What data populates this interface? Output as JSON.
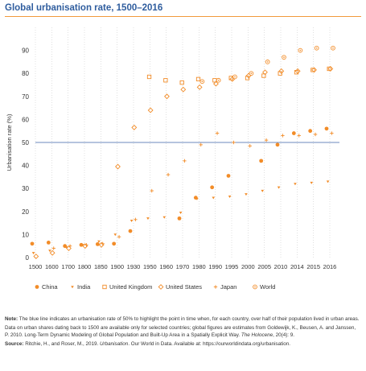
{
  "title": "Global urbanisation rate, 1500–2016",
  "notes": {
    "note_label": "Note:",
    "note_text": "The blue line indicates an urbanisation rate of 50% to highlight the point in time when, for each country, over half of their population lived in urban areas.",
    "data_text_1": "Data on urban shares dating back to 1500 are available only for selected countries; global figures are estimates from Goldewijk, K., Beusen, A. and Janssen, P. 2010. Long-Term Dynamic Modeling of Global Population and Built-Up Area in a Spatially Explicit Way.",
    "data_journal": "The Holocene",
    "data_text_2": ", 20(4): 9.",
    "source_label": "Source:",
    "source_text_1": "Ritchie, H., and Roser, M., 2019.",
    "source_title": "Urbanisation",
    "source_text_2": ". Our World in Data. Available at: https://ourworldindata.org/urbanisation."
  },
  "colors": {
    "marker": "#f28c28",
    "reference_line": "#3a62a8",
    "grid": "#cccccc",
    "axis_text": "#333333"
  },
  "chart_data": {
    "type": "scatter",
    "ylabel": "Urbanisation rate (%)",
    "xlabel": "",
    "ylim": [
      0,
      100
    ],
    "yticks": [
      0,
      10,
      20,
      30,
      40,
      50,
      60,
      70,
      80,
      90
    ],
    "grid": "vertical dotted lines",
    "categories": [
      "1500",
      "1600",
      "1700",
      "1800",
      "1850",
      "1900",
      "1930",
      "1950",
      "1960",
      "1970",
      "1980",
      "1990",
      "1995",
      "2000",
      "2005",
      "2010",
      "2014",
      "2015",
      "2016"
    ],
    "reference_line": {
      "y": 50
    },
    "legend_position": "bottom",
    "series": [
      {
        "name": "China",
        "marker": "filled-circle",
        "points": [
          [
            0,
            6
          ],
          [
            1,
            6.5
          ],
          [
            2,
            5
          ],
          [
            3,
            5.5
          ],
          [
            4,
            5.8
          ],
          [
            5,
            6
          ],
          [
            6,
            11.5
          ],
          [
            9,
            17
          ],
          [
            10,
            26
          ],
          [
            11,
            30.5
          ],
          [
            12,
            35.5
          ],
          [
            14,
            42
          ],
          [
            15,
            49
          ],
          [
            16,
            54
          ],
          [
            17,
            55
          ],
          [
            18,
            56
          ]
        ]
      },
      {
        "name": "India",
        "marker": "triangle-down",
        "points": [
          [
            0,
            2
          ],
          [
            1,
            3
          ],
          [
            2,
            4.5
          ],
          [
            3,
            5.5
          ],
          [
            4,
            7
          ],
          [
            5,
            10
          ],
          [
            6,
            16
          ],
          [
            7,
            17
          ],
          [
            8,
            17.5
          ],
          [
            9,
            19.5
          ],
          [
            10,
            25.5
          ],
          [
            11,
            26
          ],
          [
            12,
            26.5
          ],
          [
            13,
            27.5
          ],
          [
            14,
            29
          ],
          [
            15,
            30.5
          ],
          [
            16,
            32
          ],
          [
            17,
            32.5
          ],
          [
            18,
            33
          ]
        ]
      },
      {
        "name": "United Kingdom",
        "marker": "open-square",
        "points": [
          [
            7,
            78.5
          ],
          [
            8,
            77
          ],
          [
            9,
            76
          ],
          [
            10,
            77.5
          ],
          [
            11,
            77
          ],
          [
            12,
            78
          ],
          [
            13,
            78
          ],
          [
            14,
            79
          ],
          [
            15,
            80
          ],
          [
            16,
            80.5
          ],
          [
            17,
            81.5
          ],
          [
            18,
            82
          ]
        ]
      },
      {
        "name": "United States",
        "marker": "open-diamond",
        "points": [
          [
            0,
            0.5
          ],
          [
            1,
            2
          ],
          [
            2,
            4
          ],
          [
            3,
            5
          ],
          [
            4,
            5.5
          ],
          [
            5,
            39.5
          ],
          [
            6,
            56.5
          ],
          [
            7,
            64
          ],
          [
            8,
            70
          ],
          [
            9,
            73
          ],
          [
            10,
            74
          ],
          [
            11,
            75.5
          ],
          [
            12,
            77.5
          ],
          [
            13,
            79
          ],
          [
            14,
            80.5
          ],
          [
            15,
            81
          ],
          [
            16,
            81
          ],
          [
            17,
            81.5
          ],
          [
            18,
            82
          ]
        ]
      },
      {
        "name": "Japan",
        "marker": "plus",
        "points": [
          [
            1,
            4
          ],
          [
            2,
            5
          ],
          [
            3,
            5.5
          ],
          [
            4,
            6
          ],
          [
            5,
            9
          ],
          [
            6,
            16.5
          ],
          [
            7,
            29
          ],
          [
            8,
            36
          ],
          [
            9,
            42
          ],
          [
            10,
            49
          ],
          [
            11,
            54
          ],
          [
            12,
            50
          ],
          [
            13,
            48.5
          ],
          [
            14,
            51
          ],
          [
            15,
            53
          ],
          [
            16,
            53
          ],
          [
            17,
            53.5
          ],
          [
            18,
            54
          ]
        ]
      },
      {
        "name": "World",
        "marker": "circle-dot",
        "points": [
          [
            10,
            76.5
          ],
          [
            11,
            77
          ],
          [
            12,
            78.5
          ],
          [
            13,
            80
          ],
          [
            14,
            85
          ],
          [
            15,
            87
          ],
          [
            16,
            90
          ],
          [
            17,
            91
          ],
          [
            18,
            91
          ]
        ]
      }
    ]
  }
}
